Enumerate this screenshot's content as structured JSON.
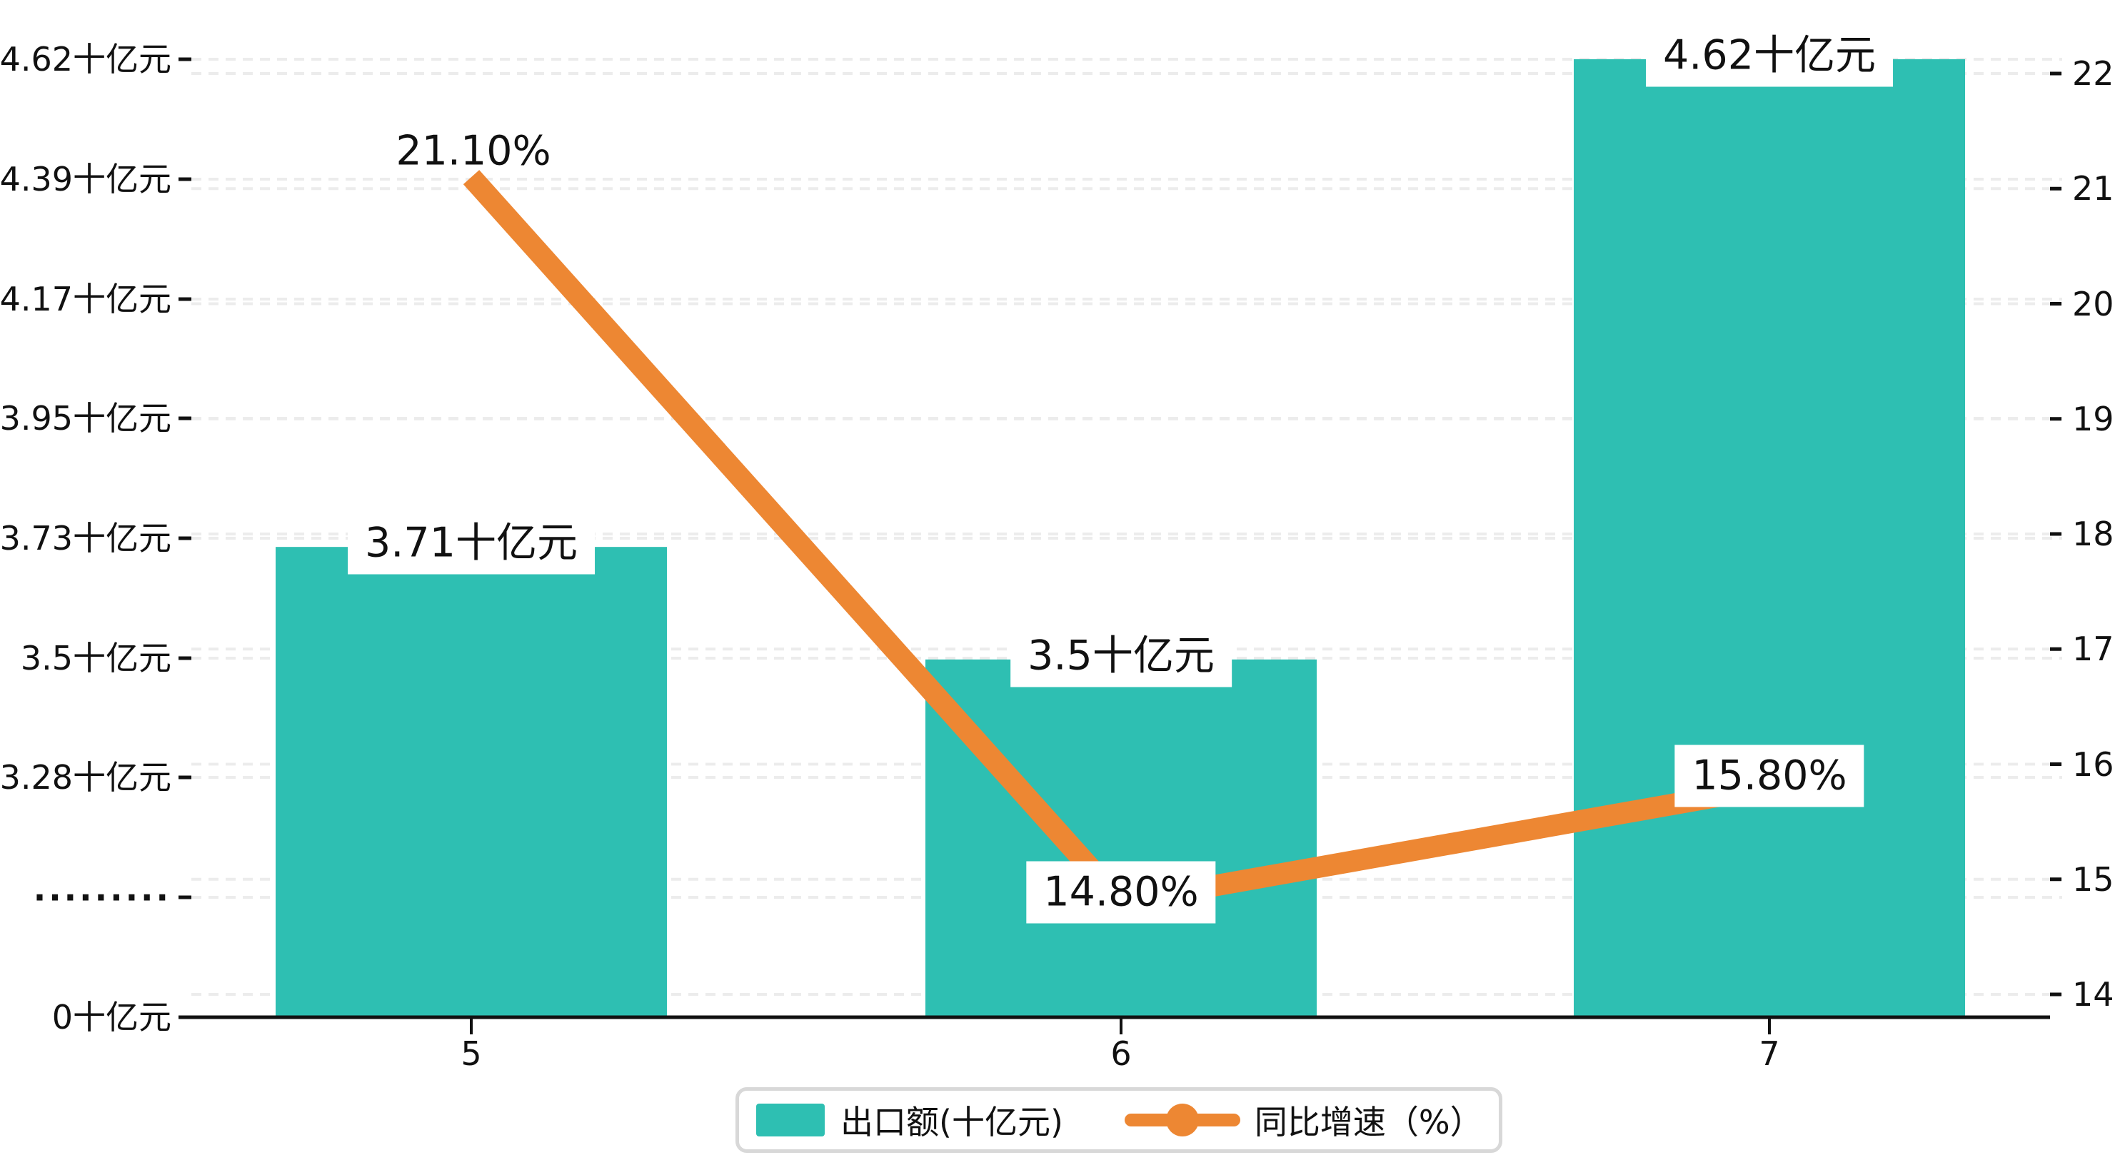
{
  "chart_data": {
    "type": "bar",
    "title": "",
    "categories": [
      "5",
      "6",
      "7"
    ],
    "series": [
      {
        "name": "出口额(十亿元)",
        "type": "bar",
        "yaxis": "left",
        "values": [
          3.71,
          3.5,
          4.62
        ],
        "labels": [
          "3.71十亿元",
          "3.5十亿元",
          "4.62十亿元"
        ],
        "color": "#2EBFB2"
      },
      {
        "name": "同比增速（%）",
        "type": "line",
        "yaxis": "right",
        "values": [
          21.1,
          14.8,
          15.8
        ],
        "labels": [
          "21.10%",
          "14.80%",
          "15.80%"
        ],
        "color": "#ED8733"
      }
    ],
    "left_axis": {
      "tick_labels": [
        "0十亿元",
        "·········",
        "3.28十亿元",
        "3.5十亿元",
        "3.73十亿元",
        "3.95十亿元",
        "4.17十亿元",
        "4.39十亿元",
        "4.62十亿元"
      ],
      "tick_values": [
        0,
        null,
        3.28,
        3.5,
        3.73,
        3.95,
        4.17,
        4.39,
        4.62
      ],
      "broken_axis": true,
      "unit": "十亿元"
    },
    "right_axis": {
      "tick_labels": [
        "14",
        "15",
        "16",
        "17",
        "18",
        "19",
        "20",
        "21",
        "22"
      ],
      "min": 14,
      "max": 22
    },
    "grid": true,
    "legend_position": "bottom"
  },
  "legend": {
    "items": [
      {
        "label": "出口额(十亿元)",
        "color": "#2EBFB2",
        "type": "bar"
      },
      {
        "label": "同比增速（%）",
        "color": "#ED8733",
        "type": "line"
      }
    ]
  },
  "colors": {
    "bar": "#2EBFB2",
    "line": "#ED8733",
    "grid": "#ECECEC",
    "axis": "#111111",
    "label_bg": "#FFFFFF"
  }
}
